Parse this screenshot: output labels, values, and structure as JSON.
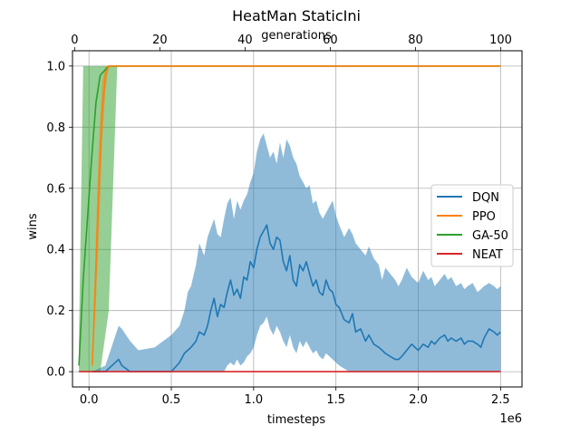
{
  "chart_data": {
    "type": "line",
    "title": "HeatMan StaticIni",
    "xlabel": "timesteps",
    "x_offset_label": "1e6",
    "ylabel": "wins",
    "top_xlabel": "generations",
    "xlim": [
      -0.1,
      2.63
    ],
    "ylim": [
      -0.05,
      1.05
    ],
    "top_xlim": [
      -0.5,
      105
    ],
    "x_ticks": [
      0.0,
      0.5,
      1.0,
      1.5,
      2.0,
      2.5
    ],
    "x_tick_labels": [
      "0.0",
      "0.5",
      "1.0",
      "1.5",
      "2.0",
      "2.5"
    ],
    "y_ticks": [
      0.0,
      0.2,
      0.4,
      0.6,
      0.8,
      1.0
    ],
    "y_tick_labels": [
      "0.0",
      "0.2",
      "0.4",
      "0.6",
      "0.8",
      "1.0"
    ],
    "top_ticks": [
      0,
      20,
      40,
      60,
      80,
      100
    ],
    "top_tick_labels": [
      "0",
      "20",
      "40",
      "60",
      "80",
      "100"
    ],
    "grid": true,
    "legend_position": "center-right",
    "legend": [
      "DQN",
      "PPO",
      "GA-50",
      "NEAT"
    ],
    "series": [
      {
        "name": "DQN",
        "axis": "timesteps",
        "color": "#1f77b4",
        "x": [
          0.02,
          0.1,
          0.18,
          0.2,
          0.25,
          0.3,
          0.4,
          0.5,
          0.55,
          0.58,
          0.6,
          0.62,
          0.65,
          0.67,
          0.7,
          0.72,
          0.74,
          0.76,
          0.78,
          0.8,
          0.82,
          0.84,
          0.86,
          0.88,
          0.9,
          0.92,
          0.94,
          0.96,
          0.98,
          1.0,
          1.02,
          1.04,
          1.06,
          1.08,
          1.1,
          1.12,
          1.14,
          1.16,
          1.18,
          1.2,
          1.22,
          1.24,
          1.26,
          1.28,
          1.3,
          1.32,
          1.34,
          1.36,
          1.38,
          1.4,
          1.42,
          1.44,
          1.46,
          1.48,
          1.5,
          1.52,
          1.55,
          1.58,
          1.6,
          1.62,
          1.65,
          1.68,
          1.7,
          1.73,
          1.76,
          1.78,
          1.8,
          1.83,
          1.86,
          1.88,
          1.9,
          1.93,
          1.96,
          1.98,
          2.0,
          2.03,
          2.06,
          2.08,
          2.1,
          2.13,
          2.16,
          2.18,
          2.2,
          2.23,
          2.26,
          2.28,
          2.3,
          2.33,
          2.36,
          2.38,
          2.4,
          2.43,
          2.46,
          2.48,
          2.5
        ],
        "y": [
          0.0,
          0.0,
          0.04,
          0.02,
          0.0,
          0.0,
          0.0,
          0.0,
          0.03,
          0.06,
          0.07,
          0.08,
          0.1,
          0.13,
          0.12,
          0.15,
          0.2,
          0.24,
          0.18,
          0.22,
          0.21,
          0.26,
          0.3,
          0.25,
          0.27,
          0.24,
          0.31,
          0.3,
          0.36,
          0.34,
          0.4,
          0.44,
          0.46,
          0.48,
          0.42,
          0.4,
          0.44,
          0.43,
          0.36,
          0.33,
          0.38,
          0.3,
          0.28,
          0.35,
          0.33,
          0.36,
          0.32,
          0.28,
          0.3,
          0.26,
          0.25,
          0.3,
          0.27,
          0.26,
          0.22,
          0.21,
          0.17,
          0.16,
          0.19,
          0.13,
          0.14,
          0.1,
          0.12,
          0.09,
          0.08,
          0.07,
          0.06,
          0.05,
          0.04,
          0.04,
          0.05,
          0.07,
          0.09,
          0.08,
          0.07,
          0.09,
          0.08,
          0.1,
          0.09,
          0.11,
          0.12,
          0.1,
          0.11,
          0.1,
          0.11,
          0.09,
          0.1,
          0.1,
          0.09,
          0.08,
          0.11,
          0.14,
          0.13,
          0.12,
          0.13
        ],
        "band_upper": [
          0.0,
          0.02,
          0.15,
          0.14,
          0.1,
          0.07,
          0.08,
          0.12,
          0.15,
          0.2,
          0.26,
          0.28,
          0.35,
          0.42,
          0.38,
          0.44,
          0.47,
          0.5,
          0.45,
          0.44,
          0.5,
          0.55,
          0.57,
          0.5,
          0.56,
          0.53,
          0.56,
          0.58,
          0.62,
          0.65,
          0.72,
          0.76,
          0.78,
          0.74,
          0.7,
          0.72,
          0.68,
          0.75,
          0.7,
          0.76,
          0.74,
          0.7,
          0.68,
          0.64,
          0.62,
          0.6,
          0.61,
          0.55,
          0.56,
          0.52,
          0.5,
          0.52,
          0.54,
          0.56,
          0.51,
          0.48,
          0.44,
          0.47,
          0.45,
          0.42,
          0.4,
          0.38,
          0.41,
          0.37,
          0.35,
          0.3,
          0.34,
          0.32,
          0.3,
          0.28,
          0.3,
          0.34,
          0.31,
          0.3,
          0.29,
          0.33,
          0.3,
          0.31,
          0.28,
          0.3,
          0.32,
          0.3,
          0.31,
          0.28,
          0.29,
          0.27,
          0.28,
          0.29,
          0.26,
          0.27,
          0.28,
          0.29,
          0.28,
          0.27,
          0.28
        ],
        "band_lower": [
          0.0,
          0.0,
          0.0,
          0.0,
          0.0,
          0.0,
          0.0,
          0.0,
          0.0,
          0.0,
          0.0,
          0.0,
          0.0,
          0.0,
          0.0,
          0.0,
          0.0,
          0.0,
          0.0,
          0.0,
          0.0,
          0.02,
          0.03,
          0.02,
          0.04,
          0.02,
          0.03,
          0.05,
          0.06,
          0.08,
          0.12,
          0.15,
          0.16,
          0.18,
          0.14,
          0.12,
          0.15,
          0.13,
          0.1,
          0.08,
          0.12,
          0.08,
          0.06,
          0.1,
          0.08,
          0.1,
          0.08,
          0.06,
          0.07,
          0.05,
          0.04,
          0.06,
          0.05,
          0.04,
          0.03,
          0.02,
          0.01,
          0.0,
          0.0,
          0.0,
          0.0,
          0.0,
          0.0,
          0.0,
          0.0,
          0.0,
          0.0,
          0.0,
          0.0,
          0.0,
          0.0,
          0.0,
          0.0,
          0.0,
          0.0,
          0.0,
          0.0,
          0.0,
          0.0,
          0.0,
          0.0,
          0.0,
          0.0,
          0.0,
          0.0,
          0.0,
          0.0,
          0.0,
          0.0,
          0.0,
          0.0,
          0.0,
          0.0,
          0.0,
          0.0
        ]
      },
      {
        "name": "PPO",
        "axis": "timesteps",
        "color": "#ff7f0e",
        "x": [
          0.02,
          0.04,
          0.06,
          0.08,
          0.1,
          0.12,
          0.15,
          0.2,
          0.25,
          2.5
        ],
        "y": [
          0.02,
          0.3,
          0.6,
          0.85,
          0.97,
          1.0,
          1.0,
          1.0,
          1.0,
          1.0
        ],
        "band_upper": [
          0.05,
          0.4,
          0.75,
          0.95,
          1.0,
          1.0,
          1.0,
          1.0,
          1.0,
          1.0
        ],
        "band_lower": [
          0.0,
          0.2,
          0.45,
          0.75,
          0.92,
          1.0,
          1.0,
          1.0,
          1.0,
          1.0
        ]
      },
      {
        "name": "GA-50",
        "axis": "generations",
        "color": "#2ca02c",
        "x": [
          1,
          2,
          3,
          4,
          5,
          6,
          8,
          10,
          100
        ],
        "y": [
          0.02,
          0.3,
          0.5,
          0.7,
          0.88,
          0.97,
          1.0,
          1.0,
          1.0
        ],
        "band_upper": [
          0.1,
          1.0,
          1.0,
          1.0,
          1.0,
          1.0,
          1.0,
          1.0,
          1.0
        ],
        "band_lower": [
          0.0,
          0.0,
          0.0,
          0.0,
          0.0,
          0.0,
          0.2,
          1.0,
          1.0
        ]
      },
      {
        "name": "NEAT",
        "axis": "generations",
        "color": "#d62728",
        "x": [
          1,
          100
        ],
        "y": [
          0.0,
          0.0
        ]
      }
    ]
  }
}
